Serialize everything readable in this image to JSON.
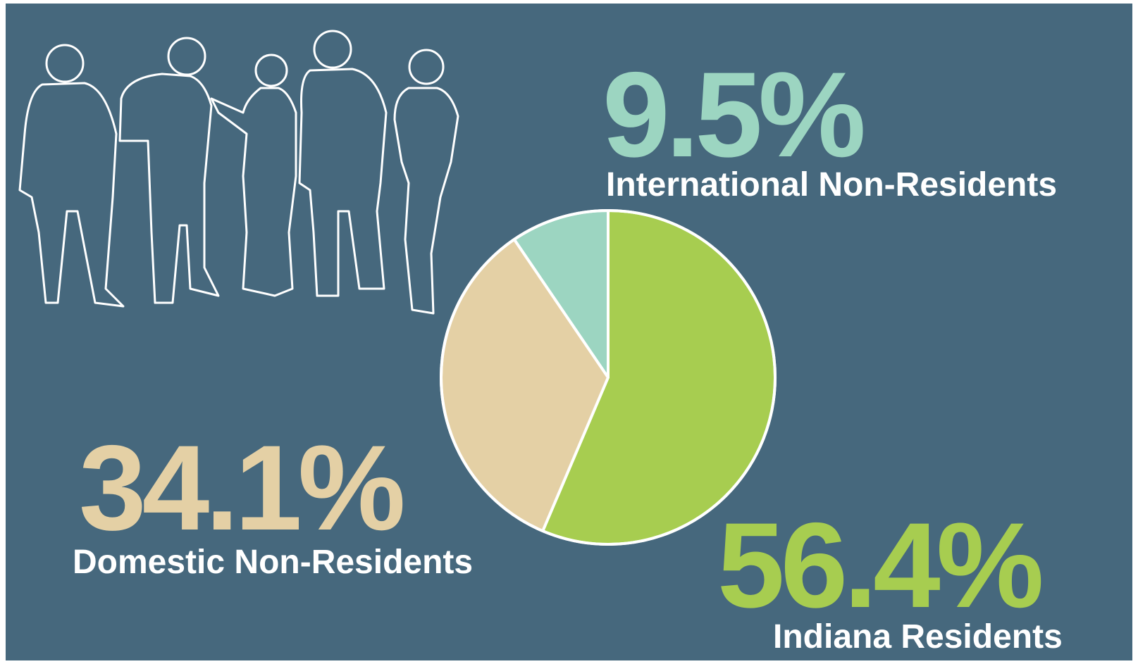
{
  "chart_data": {
    "type": "pie",
    "categories": [
      "Indiana Residents",
      "Domestic Non-Residents",
      "International Non-Residents"
    ],
    "values": [
      56.4,
      34.1,
      9.5
    ],
    "value_labels": [
      "56.4%",
      "34.1%",
      "9.5%"
    ],
    "colors": [
      "#a7cd50",
      "#e4d0a5",
      "#9cd5c1"
    ]
  }
}
